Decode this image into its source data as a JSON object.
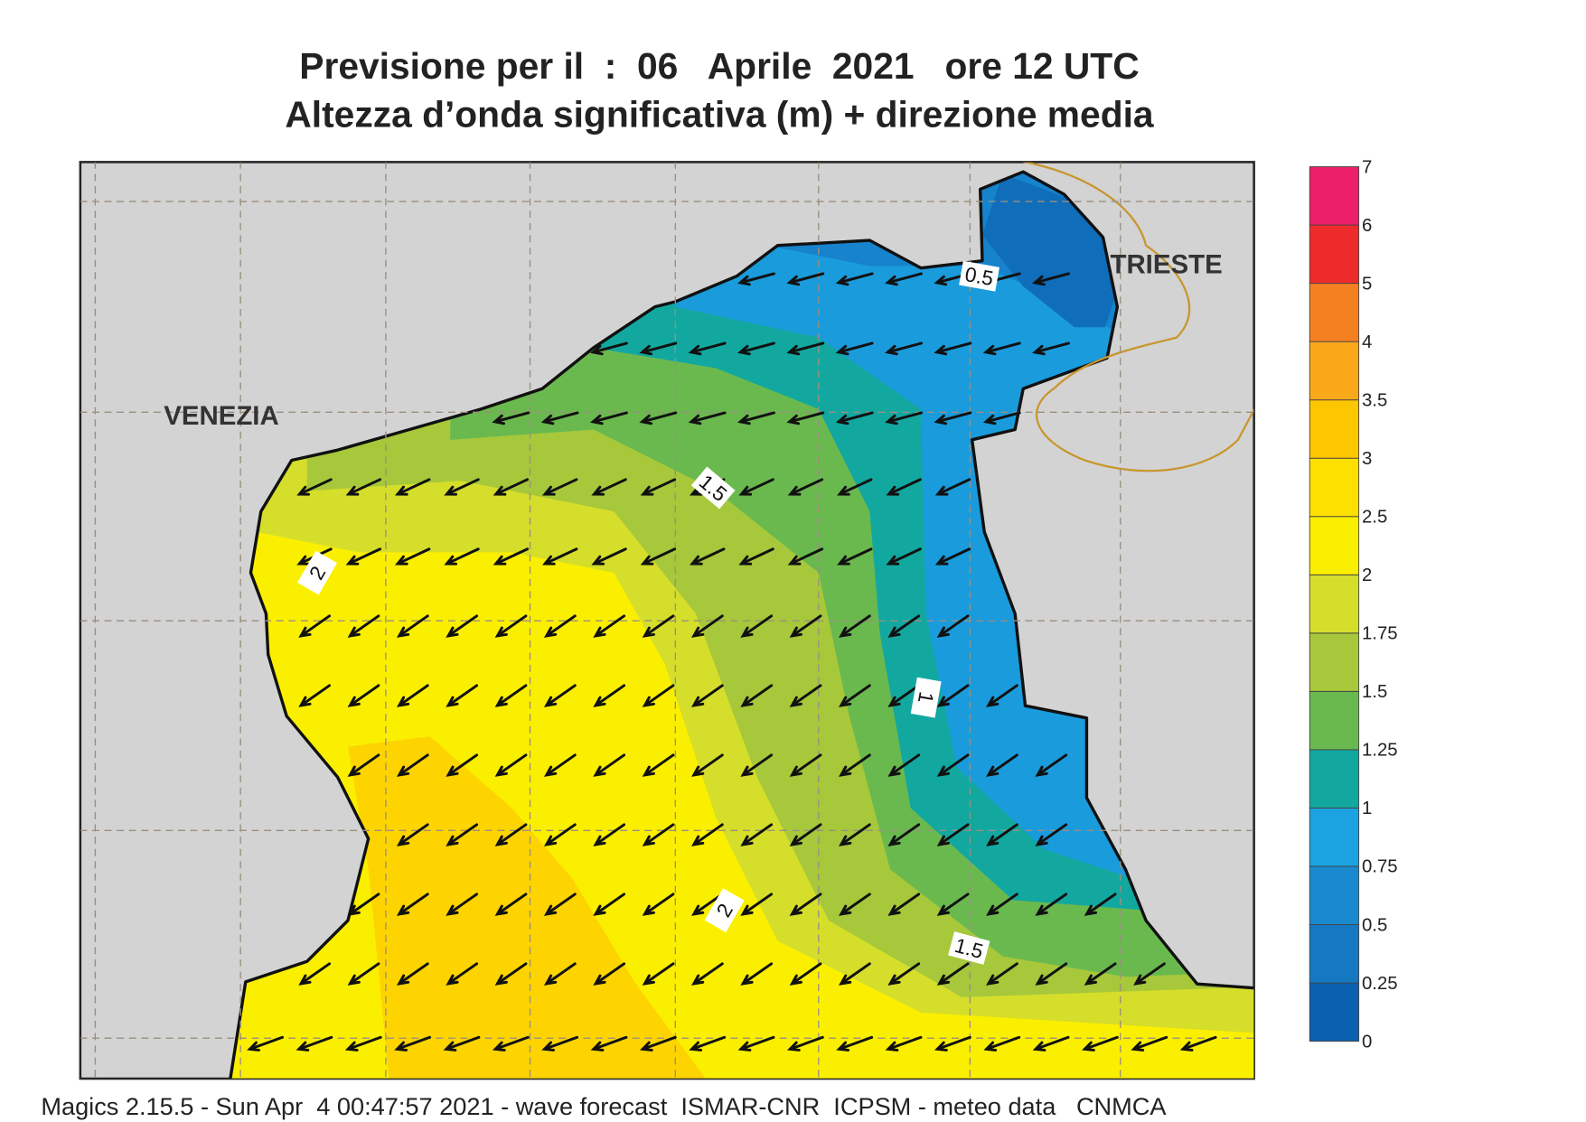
{
  "header": {
    "title_line1": "Previsione per il  :  06   Aprile  2021   ore 12 UTC",
    "title_line2": "Altezza d’onda significativa (m) + direzione media"
  },
  "map": {
    "places": [
      "VENEZIA",
      "TRIESTE"
    ],
    "contour_labels": [
      "0.5",
      "1.5",
      "2",
      "1",
      "2",
      "1.5"
    ]
  },
  "colorbar": {
    "levels": [
      0,
      0.25,
      0.5,
      0.75,
      1,
      1.25,
      1.5,
      1.75,
      2,
      2.5,
      3,
      3.5,
      4,
      5,
      6,
      7
    ],
    "colors": [
      "#0b61b0",
      "#1578c2",
      "#1a8ad0",
      "#1aa3e0",
      "#12a8a0",
      "#6ab94e",
      "#a6c83a",
      "#d5de2a",
      "#fbef00",
      "#fde000",
      "#fcc700",
      "#f9a81a",
      "#f58022",
      "#ee2b2b",
      "#ec1f6b"
    ]
  },
  "footer": "Magics 2.15.5 - Sun Apr  4 00:47:57 2021 - wave forecast  ISMAR-CNR  ICPSM - meteo data   CNMCA"
}
